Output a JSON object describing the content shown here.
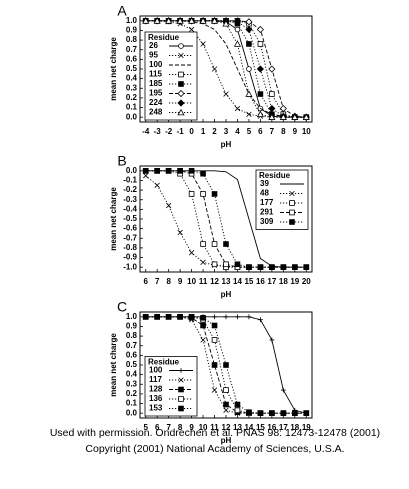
{
  "chart_data": [
    {
      "type": "line",
      "panel_label": "A",
      "x_label": "pH",
      "y_label": "mean net charge",
      "x": [
        -4,
        -3,
        -2,
        -1,
        0,
        1,
        2,
        3,
        4,
        5,
        6,
        7,
        8,
        9,
        10
      ],
      "xlim": [
        -4.5,
        10.5
      ],
      "xticks": [
        -4,
        -3,
        -2,
        -1,
        0,
        1,
        2,
        3,
        4,
        5,
        6,
        7,
        8,
        9,
        10
      ],
      "ylim": [
        -0.05,
        1.05
      ],
      "yticks": [
        {
          "value": 0,
          "label": "0.0"
        },
        0.1,
        0.2,
        0.3,
        0.4,
        0.5,
        0.6,
        0.7,
        0.8,
        0.9,
        {
          "value": 1,
          "label": "1.0"
        }
      ],
      "legend_title": "Residue",
      "legend_loc": "lower left",
      "series": [
        {
          "name": "26",
          "color": "#000",
          "marker": "open-circle",
          "line_style": "solid",
          "values": [
            1,
            1,
            1,
            1,
            1,
            1,
            1,
            0.99,
            0.91,
            0.5,
            0.09,
            0.01,
            0,
            0,
            0
          ]
        },
        {
          "name": "95",
          "color": "#000",
          "marker": "x",
          "line_style": "dotted",
          "values": [
            1,
            1,
            0.99,
            0.97,
            0.91,
            0.76,
            0.5,
            0.24,
            0.09,
            0.03,
            0.01,
            0,
            0,
            0,
            0
          ]
        },
        {
          "name": "100",
          "color": "#000",
          "marker": "none",
          "line_style": "dashed",
          "values": [
            1,
            1,
            1,
            1,
            0.99,
            0.97,
            0.91,
            0.76,
            0.5,
            0.24,
            0.09,
            0.03,
            0.01,
            0,
            0
          ]
        },
        {
          "name": "115",
          "color": "#000",
          "marker": "open-square",
          "line_style": "dotted",
          "values": [
            1,
            1,
            1,
            1,
            1,
            1,
            1,
            1,
            1,
            0.97,
            0.76,
            0.24,
            0.03,
            0,
            0
          ]
        },
        {
          "name": "185",
          "color": "#000",
          "marker": "filled-square",
          "line_style": "dotted",
          "values": [
            1,
            1,
            1,
            1,
            1,
            1,
            1,
            1,
            0.97,
            0.76,
            0.24,
            0.03,
            0,
            0,
            0
          ]
        },
        {
          "name": "195",
          "color": "#000",
          "marker": "open-diamond",
          "line_style": "dashed",
          "values": [
            1,
            1,
            1,
            1,
            1,
            1,
            1,
            1,
            1,
            0.99,
            0.91,
            0.5,
            0.09,
            0.01,
            0
          ]
        },
        {
          "name": "224",
          "color": "#000",
          "marker": "filled-diamond",
          "line_style": "dotted",
          "values": [
            1,
            1,
            1,
            1,
            1,
            1,
            1,
            1,
            0.99,
            0.91,
            0.5,
            0.09,
            0.01,
            0,
            0
          ]
        },
        {
          "name": "248",
          "color": "#000",
          "marker": "open-triangle",
          "line_style": "dotted",
          "values": [
            1,
            1,
            1,
            1,
            1,
            1,
            1,
            0.97,
            0.76,
            0.24,
            0.03,
            0,
            0,
            0,
            0
          ]
        }
      ]
    },
    {
      "type": "line",
      "panel_label": "B",
      "x_label": "pH",
      "y_label": "mean net charge",
      "x": [
        6,
        7,
        8,
        9,
        10,
        11,
        12,
        13,
        14,
        15,
        16,
        17,
        18,
        19,
        20
      ],
      "xlim": [
        5.5,
        20.5
      ],
      "xticks": [
        6,
        7,
        8,
        9,
        10,
        11,
        12,
        13,
        14,
        15,
        16,
        17,
        18,
        19,
        20
      ],
      "ylim": [
        -1.05,
        0.05
      ],
      "yticks": [
        {
          "value": 0,
          "label": "0.0"
        },
        -0.1,
        -0.2,
        -0.3,
        -0.4,
        -0.5,
        -0.6,
        -0.7,
        -0.8,
        -0.9,
        {
          "value": -1,
          "label": "-1.0"
        }
      ],
      "legend_title": "Residue",
      "legend_loc": "upper right",
      "series": [
        {
          "name": "39",
          "color": "#000",
          "marker": "none",
          "line_style": "solid",
          "values": [
            0,
            0,
            0,
            0,
            0,
            0,
            0,
            -0.01,
            -0.09,
            -0.5,
            -0.91,
            -0.99,
            -1,
            -1,
            -1
          ]
        },
        {
          "name": "48",
          "color": "#000",
          "marker": "x",
          "line_style": "dotted",
          "values": [
            -0.05,
            -0.15,
            -0.36,
            -0.64,
            -0.85,
            -0.95,
            -0.98,
            -0.99,
            -1,
            -1,
            -1,
            -1,
            -1,
            -1,
            -1
          ]
        },
        {
          "name": "177",
          "color": "#000",
          "marker": "open-square",
          "line_style": "dotted",
          "values": [
            0,
            0,
            0,
            -0.03,
            -0.24,
            -0.76,
            -0.97,
            -1,
            -1,
            -1,
            -1,
            -1,
            -1,
            -1,
            -1
          ]
        },
        {
          "name": "291",
          "color": "#000",
          "marker": "open-square",
          "line_style": "dashed",
          "values": [
            0,
            0,
            0,
            0,
            -0.03,
            -0.24,
            -0.76,
            -0.97,
            -1,
            -1,
            -1,
            -1,
            -1,
            -1,
            -1
          ]
        },
        {
          "name": "309",
          "color": "#000",
          "marker": "filled-square",
          "line_style": "dotted",
          "values": [
            0,
            0,
            0,
            0,
            0,
            -0.03,
            -0.24,
            -0.76,
            -0.97,
            -1,
            -1,
            -1,
            -1,
            -1,
            -1
          ]
        }
      ]
    },
    {
      "type": "line",
      "panel_label": "C",
      "x_label": "pH",
      "y_label": "mean net charge",
      "x": [
        5,
        6,
        7,
        8,
        9,
        10,
        11,
        12,
        13,
        14,
        15,
        16,
        17,
        18,
        19
      ],
      "xlim": [
        4.5,
        19.5
      ],
      "xticks": [
        5,
        6,
        7,
        8,
        9,
        10,
        11,
        12,
        13,
        14,
        15,
        16,
        17,
        18,
        19
      ],
      "ylim": [
        -0.05,
        1.05
      ],
      "yticks": [
        {
          "value": 0,
          "label": "0.0"
        },
        0.1,
        0.2,
        0.3,
        0.4,
        0.5,
        0.6,
        0.7,
        0.8,
        0.9,
        {
          "value": 1,
          "label": "1.0"
        }
      ],
      "legend_title": "Residue",
      "legend_loc": "lower left",
      "series": [
        {
          "name": "100",
          "color": "#000",
          "marker": "plus",
          "line_style": "solid",
          "values": [
            1,
            1,
            1,
            1,
            1,
            1,
            1,
            1,
            1,
            1,
            0.97,
            0.76,
            0.24,
            0.03,
            0
          ]
        },
        {
          "name": "117",
          "color": "#000",
          "marker": "x",
          "line_style": "dotted",
          "values": [
            1,
            1,
            1,
            1,
            0.97,
            0.76,
            0.24,
            0.03,
            0,
            0,
            0,
            0,
            0,
            0,
            0
          ]
        },
        {
          "name": "128",
          "color": "#000",
          "marker": "filled-square",
          "line_style": "dashed",
          "values": [
            1,
            1,
            1,
            1,
            0.99,
            0.91,
            0.5,
            0.09,
            0.01,
            0,
            0,
            0,
            0,
            0,
            0
          ]
        },
        {
          "name": "136",
          "color": "#000",
          "marker": "open-square",
          "line_style": "dotted",
          "values": [
            1,
            1,
            1,
            1,
            1,
            0.97,
            0.76,
            0.24,
            0.03,
            0,
            0,
            0,
            0,
            0,
            0
          ]
        },
        {
          "name": "153",
          "color": "#000",
          "marker": "filled-square",
          "line_style": "dotted",
          "values": [
            1,
            1,
            1,
            1,
            1,
            0.99,
            0.91,
            0.5,
            0.09,
            0.01,
            0,
            0,
            0,
            0,
            0
          ]
        }
      ]
    }
  ],
  "caption": [
    "Used with permission.  Ondrechen et al.  PNAS 98: 12473-12478 (2001)",
    "Copyright (2001) National Academy of Sciences, U.S.A."
  ]
}
